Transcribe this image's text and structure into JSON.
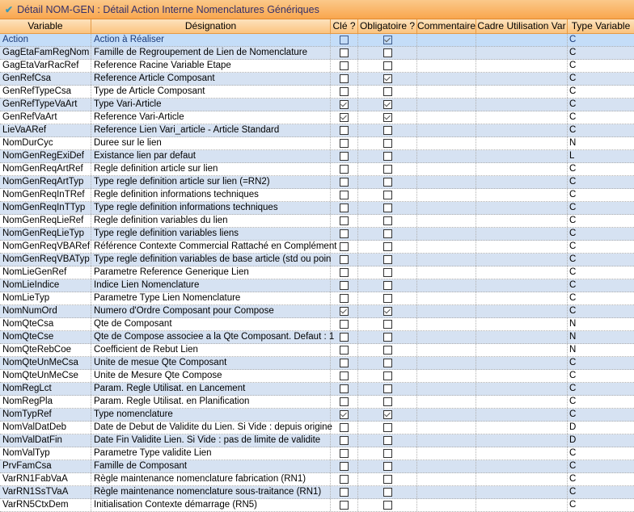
{
  "window": {
    "title": "Détail NOM-GEN : Détail Action Interne Nomenclatures Génériques",
    "title_icon": "checkmark-icon"
  },
  "columns": [
    "Variable",
    "Désignation",
    "Clé ?",
    "Obligatoire ?",
    "Commentaire",
    "Cadre Utilisation Var",
    "Type Variable"
  ],
  "selected_row": 0,
  "rows": [
    {
      "variable": "Action",
      "designation": "Action à Réaliser",
      "cle": false,
      "obligatoire": true,
      "commentaire": "",
      "cadre": "",
      "type": "C"
    },
    {
      "variable": "GagEtaFamRegNom",
      "designation": "Famille de Regroupement de Lien de Nomenclature",
      "cle": false,
      "obligatoire": false,
      "commentaire": "",
      "cadre": "",
      "type": "C"
    },
    {
      "variable": "GagEtaVarRacRef",
      "designation": "Reference Racine Variable Etape",
      "cle": false,
      "obligatoire": false,
      "commentaire": "",
      "cadre": "",
      "type": "C"
    },
    {
      "variable": "GenRefCsa",
      "designation": "Reference Article Composant",
      "cle": false,
      "obligatoire": true,
      "commentaire": "",
      "cadre": "",
      "type": "C"
    },
    {
      "variable": "GenRefTypeCsa",
      "designation": "Type de Article Composant",
      "cle": false,
      "obligatoire": false,
      "commentaire": "",
      "cadre": "",
      "type": "C"
    },
    {
      "variable": "GenRefTypeVaArt",
      "designation": "Type Vari-Article",
      "cle": true,
      "obligatoire": true,
      "commentaire": "",
      "cadre": "",
      "type": "C"
    },
    {
      "variable": "GenRefVaArt",
      "designation": "Reference Vari-Article",
      "cle": true,
      "obligatoire": true,
      "commentaire": "",
      "cadre": "",
      "type": "C"
    },
    {
      "variable": "LieVaARef",
      "designation": "Reference Lien Vari_article - Article Standard",
      "cle": false,
      "obligatoire": false,
      "commentaire": "",
      "cadre": "",
      "type": "C"
    },
    {
      "variable": "NomDurCyc",
      "designation": "Duree sur le lien",
      "cle": false,
      "obligatoire": false,
      "commentaire": "",
      "cadre": "",
      "type": "N"
    },
    {
      "variable": "NomGenRegExiDef",
      "designation": "Existance lien par defaut",
      "cle": false,
      "obligatoire": false,
      "commentaire": "",
      "cadre": "",
      "type": "L"
    },
    {
      "variable": "NomGenReqArtRef",
      "designation": "Regle definition article sur lien",
      "cle": false,
      "obligatoire": false,
      "commentaire": "",
      "cadre": "",
      "type": "C"
    },
    {
      "variable": "NomGenReqArtTyp",
      "designation": "Type regle definition article sur lien (=RN2)",
      "cle": false,
      "obligatoire": false,
      "commentaire": "",
      "cadre": "",
      "type": "C"
    },
    {
      "variable": "NomGenReqInTRef",
      "designation": "Regle definition informations techniques",
      "cle": false,
      "obligatoire": false,
      "commentaire": "",
      "cadre": "",
      "type": "C"
    },
    {
      "variable": "NomGenReqInTTyp",
      "designation": "Type regle definition informations techniques",
      "cle": false,
      "obligatoire": false,
      "commentaire": "",
      "cadre": "",
      "type": "C"
    },
    {
      "variable": "NomGenReqLieRef",
      "designation": "Regle definition variables du lien",
      "cle": false,
      "obligatoire": false,
      "commentaire": "",
      "cadre": "",
      "type": "C"
    },
    {
      "variable": "NomGenReqLieTyp",
      "designation": "Type regle definition variables liens",
      "cle": false,
      "obligatoire": false,
      "commentaire": "",
      "cadre": "",
      "type": "C"
    },
    {
      "variable": "NomGenReqVBARef",
      "designation": "Référence Contexte Commercial Rattaché en Complément",
      "cle": false,
      "obligatoire": false,
      "commentaire": "",
      "cadre": "",
      "type": "C"
    },
    {
      "variable": "NomGenReqVBATyp",
      "designation": "Type regle definition variables de base article (std ou poin",
      "cle": false,
      "obligatoire": false,
      "commentaire": "",
      "cadre": "",
      "type": "C"
    },
    {
      "variable": "NomLieGenRef",
      "designation": "Parametre Reference Generique Lien",
      "cle": false,
      "obligatoire": false,
      "commentaire": "",
      "cadre": "",
      "type": "C"
    },
    {
      "variable": "NomLieIndice",
      "designation": "Indice Lien Nomenclature",
      "cle": false,
      "obligatoire": false,
      "commentaire": "",
      "cadre": "",
      "type": "C"
    },
    {
      "variable": "NomLieTyp",
      "designation": "Parametre Type Lien Nomenclature",
      "cle": false,
      "obligatoire": false,
      "commentaire": "",
      "cadre": "",
      "type": "C"
    },
    {
      "variable": "NomNumOrd",
      "designation": "Numero d'Ordre Composant pour Compose",
      "cle": true,
      "obligatoire": true,
      "commentaire": "",
      "cadre": "",
      "type": "C"
    },
    {
      "variable": "NomQteCsa",
      "designation": "Qte de Composant",
      "cle": false,
      "obligatoire": false,
      "commentaire": "",
      "cadre": "",
      "type": "N"
    },
    {
      "variable": "NomQteCse",
      "designation": "Qte de Compose associee a la Qte Composant. Defaut : 1",
      "cle": false,
      "obligatoire": false,
      "commentaire": "",
      "cadre": "",
      "type": "N"
    },
    {
      "variable": "NomQteRebCoe",
      "designation": "Coefficient de Rebut Lien",
      "cle": false,
      "obligatoire": false,
      "commentaire": "",
      "cadre": "",
      "type": "N"
    },
    {
      "variable": "NomQteUnMeCsa",
      "designation": "Unite de mesue Qte Composant",
      "cle": false,
      "obligatoire": false,
      "commentaire": "",
      "cadre": "",
      "type": "C"
    },
    {
      "variable": "NomQteUnMeCse",
      "designation": "Unite de Mesure Qte Compose",
      "cle": false,
      "obligatoire": false,
      "commentaire": "",
      "cadre": "",
      "type": "C"
    },
    {
      "variable": "NomRegLct",
      "designation": "Param. Regle Utilisat. en Lancement",
      "cle": false,
      "obligatoire": false,
      "commentaire": "",
      "cadre": "",
      "type": "C"
    },
    {
      "variable": "NomRegPla",
      "designation": "Param. Regle Utilisat. en Planification",
      "cle": false,
      "obligatoire": false,
      "commentaire": "",
      "cadre": "",
      "type": "C"
    },
    {
      "variable": "NomTypRef",
      "designation": "Type nomenclature",
      "cle": true,
      "obligatoire": true,
      "commentaire": "",
      "cadre": "",
      "type": "C"
    },
    {
      "variable": "NomValDatDeb",
      "designation": "Date de Debut de Validite du Lien. Si Vide : depuis origine",
      "cle": false,
      "obligatoire": false,
      "commentaire": "",
      "cadre": "",
      "type": "D"
    },
    {
      "variable": "NomValDatFin",
      "designation": "Date Fin Validite Lien. Si Vide : pas de limite de validite",
      "cle": false,
      "obligatoire": false,
      "commentaire": "",
      "cadre": "",
      "type": "D"
    },
    {
      "variable": "NomValTyp",
      "designation": "Parametre Type validite Lien",
      "cle": false,
      "obligatoire": false,
      "commentaire": "",
      "cadre": "",
      "type": "C"
    },
    {
      "variable": "PrvFamCsa",
      "designation": "Famille de Composant",
      "cle": false,
      "obligatoire": false,
      "commentaire": "",
      "cadre": "",
      "type": "C"
    },
    {
      "variable": "VarRN1FabVaA",
      "designation": "Règle maintenance nomenclature fabrication (RN1)",
      "cle": false,
      "obligatoire": false,
      "commentaire": "",
      "cadre": "",
      "type": "C"
    },
    {
      "variable": "VarRN1SsTVaA",
      "designation": "Règle maintenance nomenclature sous-traitance (RN1)",
      "cle": false,
      "obligatoire": false,
      "commentaire": "",
      "cadre": "",
      "type": "C"
    },
    {
      "variable": "VarRN5CtxDem",
      "designation": "Initialisation Contexte démarrage (RN5)",
      "cle": false,
      "obligatoire": false,
      "commentaire": "",
      "cadre": "",
      "type": "C"
    }
  ]
}
